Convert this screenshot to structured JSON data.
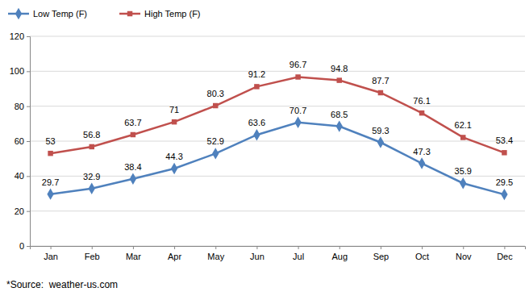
{
  "chart_data": {
    "type": "line",
    "categories": [
      "Jan",
      "Feb",
      "Mar",
      "Apr",
      "May",
      "Jun",
      "Jul",
      "Aug",
      "Sep",
      "Oct",
      "Nov",
      "Dec"
    ],
    "series": [
      {
        "name": "Low Temp (F)",
        "color": "#4F81BD",
        "marker": "diamond",
        "line_style": "solid",
        "values": [
          29.7,
          32.9,
          38.4,
          44.3,
          52.9,
          63.6,
          70.7,
          68.5,
          59.3,
          47.3,
          35.9,
          29.5
        ]
      },
      {
        "name": "High Temp (F)",
        "color": "#C0504D",
        "marker": "square",
        "line_style": "solid",
        "values": [
          53,
          56.8,
          63.7,
          71,
          80.3,
          91.2,
          96.7,
          94.8,
          87.7,
          76.1,
          62.1,
          53.4
        ]
      }
    ],
    "ylim": [
      0,
      120
    ],
    "yticks": [
      0,
      20,
      40,
      60,
      80,
      100,
      120
    ],
    "grid": true,
    "legend": "top-left",
    "data_labels": true,
    "annotations": [
      "*Source:  weather-us.com"
    ]
  }
}
